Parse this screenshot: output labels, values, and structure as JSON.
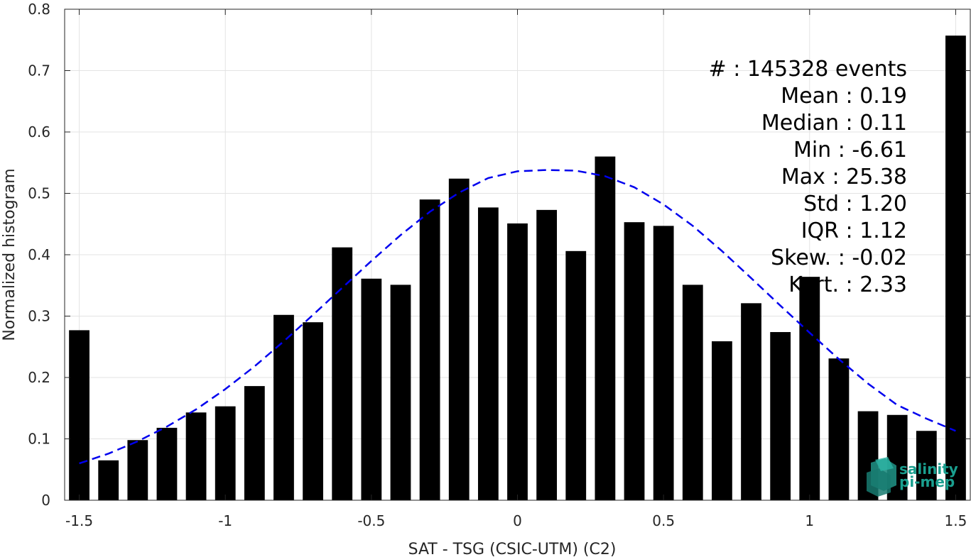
{
  "chart_data": {
    "type": "bar",
    "xlabel": "SAT - TSG (CSIC-UTM) (C2)",
    "ylabel": "Normalized histogram",
    "xlim": [
      -1.55,
      1.55
    ],
    "ylim": [
      0,
      0.8
    ],
    "x_ticks": [
      -1.5,
      -1,
      -0.5,
      0,
      0.5,
      1,
      1.5
    ],
    "x_tick_labels": [
      "-1.5",
      "-1",
      "-0.5",
      "0",
      "0.5",
      "1",
      "1.5"
    ],
    "y_ticks": [
      0,
      0.1,
      0.2,
      0.3,
      0.4,
      0.5,
      0.6,
      0.7,
      0.8
    ],
    "y_tick_labels": [
      "0",
      "0.1",
      "0.2",
      "0.3",
      "0.4",
      "0.5",
      "0.6",
      "0.7",
      "0.8"
    ],
    "grid": true,
    "bar_color": "#000000",
    "x": [
      -1.5,
      -1.4,
      -1.3,
      -1.2,
      -1.1,
      -1.0,
      -0.9,
      -0.8,
      -0.7,
      -0.6,
      -0.5,
      -0.4,
      -0.3,
      -0.2,
      -0.1,
      0.0,
      0.1,
      0.2,
      0.3,
      0.4,
      0.5,
      0.6,
      0.7,
      0.8,
      0.9,
      1.0,
      1.1,
      1.2,
      1.3,
      1.4,
      1.5
    ],
    "values": [
      0.277,
      0.065,
      0.098,
      0.118,
      0.143,
      0.153,
      0.186,
      0.302,
      0.29,
      0.412,
      0.361,
      0.351,
      0.49,
      0.524,
      0.477,
      0.451,
      0.473,
      0.406,
      0.56,
      0.453,
      0.447,
      0.351,
      0.259,
      0.321,
      0.274,
      0.364,
      0.231,
      0.145,
      0.139,
      0.113,
      0.757
    ],
    "fit_curve": {
      "style": "dashed",
      "color": "#0000ee",
      "x": [
        -1.5,
        -1.4,
        -1.3,
        -1.2,
        -1.1,
        -1.0,
        -0.9,
        -0.8,
        -0.7,
        -0.6,
        -0.5,
        -0.4,
        -0.3,
        -0.2,
        -0.1,
        0.0,
        0.1,
        0.2,
        0.3,
        0.4,
        0.5,
        0.6,
        0.7,
        0.8,
        0.9,
        1.0,
        1.1,
        1.2,
        1.3,
        1.4,
        1.5
      ],
      "y": [
        0.06,
        0.076,
        0.096,
        0.12,
        0.148,
        0.181,
        0.218,
        0.259,
        0.302,
        0.346,
        0.39,
        0.432,
        0.47,
        0.501,
        0.525,
        0.536,
        0.538,
        0.537,
        0.528,
        0.51,
        0.482,
        0.447,
        0.406,
        0.362,
        0.317,
        0.273,
        0.23,
        0.19,
        0.155,
        0.133,
        0.113
      ]
    },
    "annotations": [
      "#  : 145328 events",
      "Mean : 0.19",
      "Median : 0.11",
      "Min : -6.61",
      "Max : 25.38",
      "Std : 1.20",
      "IQR : 1.12",
      "Skew. : -0.02",
      "Kurt. : 2.33"
    ]
  },
  "logo": {
    "line1": "salinity",
    "line2": "pi-mep",
    "color": "#1a9f8f"
  }
}
